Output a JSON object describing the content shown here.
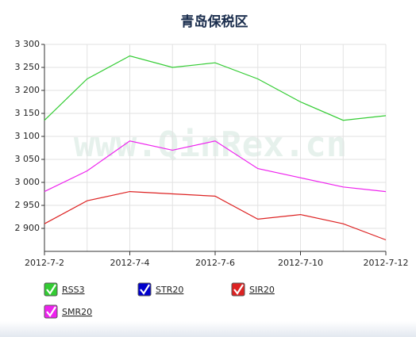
{
  "chart_data": {
    "type": "line",
    "title": "青岛保税区",
    "watermark": "www.QinRex.cn",
    "categories": [
      "2012-7-2",
      null,
      "2012-7-4",
      null,
      "2012-7-6",
      null,
      "2012-7-10",
      null,
      "2012-7-12"
    ],
    "series": [
      {
        "name": "RSS3",
        "color": "#33cc33",
        "values": [
          3135,
          3225,
          3275,
          3250,
          3260,
          3225,
          3175,
          3135,
          3145
        ]
      },
      {
        "name": "STR20",
        "color": "#0000cc",
        "values": [
          null,
          null,
          null,
          null,
          null,
          null,
          null,
          null,
          null
        ]
      },
      {
        "name": "SIR20",
        "color": "#dd2222",
        "values": [
          2910,
          2960,
          2980,
          2975,
          2970,
          2920,
          2930,
          2910,
          2875
        ]
      },
      {
        "name": "SMR20",
        "color": "#ee22ee",
        "values": [
          2980,
          3025,
          3090,
          3070,
          3090,
          3030,
          3010,
          2990,
          2980
        ]
      }
    ],
    "ylim": [
      2850,
      3300
    ],
    "yticks": [
      {
        "value": 2900,
        "label": "2 900"
      },
      {
        "value": 2950,
        "label": "2 950"
      },
      {
        "value": 3000,
        "label": "3 000"
      },
      {
        "value": 3050,
        "label": "3 050"
      },
      {
        "value": 3100,
        "label": "3 100"
      },
      {
        "value": 3150,
        "label": "3 150"
      },
      {
        "value": 3200,
        "label": "3 200"
      },
      {
        "value": 3250,
        "label": "3 250"
      },
      {
        "value": 3300,
        "label": "3 300"
      }
    ],
    "grid": true
  }
}
